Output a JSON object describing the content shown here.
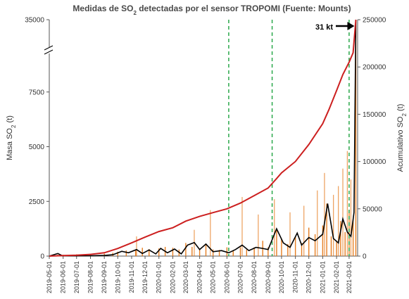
{
  "chart_data": {
    "type": "bar+line",
    "title_parts": [
      "Medidas de SO",
      "2",
      " detectadas por el sensor TROPOMI (Fuente: Mounts)"
    ],
    "y_left_label_parts": [
      "Masa SO",
      "2",
      " (t)"
    ],
    "y_right_label_parts": [
      "Acumulativo SO",
      "2",
      " (t)"
    ],
    "y_left_ticks": [
      "0",
      "2500",
      "5000",
      "7500",
      "35000"
    ],
    "y_left_ylim": [
      0,
      10000
    ],
    "y_left_axis_break": true,
    "y_left_top_tick_value": 35000,
    "y_right_ticks": [
      "0",
      "50000",
      "100000",
      "150000",
      "200000",
      "250000"
    ],
    "y_right_ylim": [
      0,
      250000
    ],
    "x_ticks": [
      "2019-05-01",
      "2019-06-01",
      "2019-07-01",
      "2019-08-01",
      "2019-09-01",
      "2019-10-01",
      "2019-11-01",
      "2019-12-01",
      "2020-01-01",
      "2020-02-01",
      "2020-03-01",
      "2020-04-01",
      "2020-05-01",
      "2020-06-01",
      "2020-07-01",
      "2020-08-01",
      "2020-09-01",
      "2020-10-01",
      "2020-11-01",
      "2020-12-01",
      "2021-01-01",
      "2021-02-01",
      "2021-03-01"
    ],
    "x_range": [
      "2019-05-01",
      "2021-03-20"
    ],
    "grid": false,
    "reference_lines_dates": [
      "2020-06-05",
      "2020-09-10",
      "2021-03-01"
    ],
    "annotation": "31 kt",
    "annotation_points_to": "2021-03-16",
    "series_daily": [
      [
        "2019-05-20",
        60
      ],
      [
        "2019-06-01",
        60
      ],
      [
        "2019-07-01",
        80
      ],
      [
        "2019-08-01",
        80
      ],
      [
        "2019-09-01",
        110
      ],
      [
        "2019-09-20",
        150
      ],
      [
        "2019-10-01",
        200
      ],
      [
        "2019-10-20",
        260
      ],
      [
        "2019-11-10",
        300
      ],
      [
        "2019-11-25",
        380
      ],
      [
        "2019-12-10",
        320
      ],
      [
        "2020-01-01",
        350
      ],
      [
        "2020-01-15",
        420
      ],
      [
        "2020-02-01",
        380
      ],
      [
        "2020-02-15",
        300
      ],
      [
        "2020-03-01",
        600
      ],
      [
        "2020-03-15",
        420
      ],
      [
        "2020-04-01",
        350
      ],
      [
        "2020-04-15",
        560
      ],
      [
        "2020-05-01",
        300
      ],
      [
        "2020-05-15",
        280
      ],
      [
        "2020-06-01",
        400
      ],
      [
        "2020-06-15",
        250
      ],
      [
        "2020-07-01",
        400
      ],
      [
        "2020-07-15",
        300
      ],
      [
        "2020-08-01",
        400
      ],
      [
        "2020-08-20",
        700
      ],
      [
        "2020-09-01",
        400
      ],
      [
        "2020-09-20",
        1200
      ],
      [
        "2020-10-01",
        800
      ],
      [
        "2020-10-15",
        550
      ],
      [
        "2020-11-01",
        900
      ],
      [
        "2020-11-15",
        600
      ],
      [
        "2020-12-01",
        1300
      ],
      [
        "2020-12-15",
        1000
      ],
      [
        "2021-01-01",
        1400
      ],
      [
        "2021-01-10",
        2400
      ],
      [
        "2021-01-20",
        900
      ],
      [
        "2021-02-01",
        700
      ],
      [
        "2021-02-10",
        1600
      ],
      [
        "2021-02-20",
        1100
      ],
      [
        "2021-03-01",
        2100
      ],
      [
        "2021-03-10",
        1700
      ],
      [
        "2021-03-16",
        31000
      ]
    ],
    "series_spikes": [
      [
        "2019-11-12",
        900
      ],
      [
        "2020-03-20",
        1200
      ],
      [
        "2020-04-25",
        2100
      ],
      [
        "2020-07-05",
        2700
      ],
      [
        "2020-08-10",
        1900
      ],
      [
        "2020-09-15",
        2600
      ],
      [
        "2020-10-20",
        2000
      ],
      [
        "2020-11-20",
        2300
      ],
      [
        "2020-12-20",
        3000
      ],
      [
        "2021-01-05",
        3800
      ],
      [
        "2021-01-25",
        2800
      ],
      [
        "2021-02-05",
        3200
      ],
      [
        "2021-02-15",
        4000
      ],
      [
        "2021-02-25",
        4800
      ],
      [
        "2021-03-05",
        3500
      ]
    ],
    "series_rolling_mean": [
      [
        "2019-05-01",
        0
      ],
      [
        "2019-05-20",
        120
      ],
      [
        "2019-05-30",
        20
      ],
      [
        "2019-07-01",
        10
      ],
      [
        "2019-08-01",
        15
      ],
      [
        "2019-09-01",
        30
      ],
      [
        "2019-09-20",
        60
      ],
      [
        "2019-10-10",
        220
      ],
      [
        "2019-10-25",
        150
      ],
      [
        "2019-11-12",
        300
      ],
      [
        "2019-11-25",
        120
      ],
      [
        "2019-12-10",
        280
      ],
      [
        "2019-12-25",
        100
      ],
      [
        "2020-01-05",
        350
      ],
      [
        "2020-01-20",
        150
      ],
      [
        "2020-02-05",
        320
      ],
      [
        "2020-02-20",
        100
      ],
      [
        "2020-03-05",
        500
      ],
      [
        "2020-03-20",
        620
      ],
      [
        "2020-04-01",
        300
      ],
      [
        "2020-04-15",
        550
      ],
      [
        "2020-05-01",
        200
      ],
      [
        "2020-05-20",
        250
      ],
      [
        "2020-06-05",
        150
      ],
      [
        "2020-06-20",
        300
      ],
      [
        "2020-07-05",
        500
      ],
      [
        "2020-07-20",
        250
      ],
      [
        "2020-08-05",
        400
      ],
      [
        "2020-08-20",
        350
      ],
      [
        "2020-09-01",
        300
      ],
      [
        "2020-09-20",
        1250
      ],
      [
        "2020-10-05",
        600
      ],
      [
        "2020-10-20",
        400
      ],
      [
        "2020-11-05",
        1050
      ],
      [
        "2020-11-15",
        500
      ],
      [
        "2020-12-01",
        850
      ],
      [
        "2020-12-15",
        700
      ],
      [
        "2021-01-01",
        1000
      ],
      [
        "2021-01-12",
        2400
      ],
      [
        "2021-01-25",
        800
      ],
      [
        "2021-02-05",
        600
      ],
      [
        "2021-02-15",
        1700
      ],
      [
        "2021-02-25",
        1100
      ],
      [
        "2021-03-05",
        900
      ],
      [
        "2021-03-12",
        2000
      ],
      [
        "2021-03-16",
        26000
      ]
    ],
    "series_cumulative": [
      [
        "2019-05-01",
        0
      ],
      [
        "2019-06-01",
        600
      ],
      [
        "2019-07-01",
        1000
      ],
      [
        "2019-08-01",
        1800
      ],
      [
        "2019-09-01",
        3500
      ],
      [
        "2019-10-01",
        8000
      ],
      [
        "2019-11-01",
        14000
      ],
      [
        "2019-12-01",
        20000
      ],
      [
        "2020-01-01",
        26000
      ],
      [
        "2020-02-01",
        30000
      ],
      [
        "2020-03-01",
        37000
      ],
      [
        "2020-04-01",
        42000
      ],
      [
        "2020-05-01",
        46000
      ],
      [
        "2020-06-01",
        50000
      ],
      [
        "2020-07-01",
        56000
      ],
      [
        "2020-08-01",
        64000
      ],
      [
        "2020-09-01",
        72000
      ],
      [
        "2020-09-20",
        82000
      ],
      [
        "2020-10-01",
        88000
      ],
      [
        "2020-11-01",
        100000
      ],
      [
        "2020-12-01",
        118000
      ],
      [
        "2021-01-01",
        140000
      ],
      [
        "2021-01-15",
        155000
      ],
      [
        "2021-02-01",
        175000
      ],
      [
        "2021-02-15",
        192000
      ],
      [
        "2021-03-01",
        205000
      ],
      [
        "2021-03-10",
        215000
      ],
      [
        "2021-03-16",
        250000
      ]
    ]
  },
  "colors": {
    "bars": "#e67e22",
    "rolling_mean": "#000000",
    "cumulative": "#cc1f1f",
    "reference_lines": "#2aa84a",
    "axes": "#555555"
  }
}
